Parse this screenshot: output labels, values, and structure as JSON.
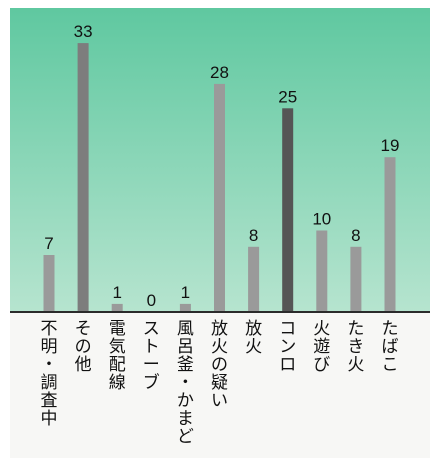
{
  "colors": {
    "panel_top": "#5fc8a0",
    "panel_bottom": "#b6e4cf",
    "bar_gray": "#9a9a9a",
    "bar_dark": "#555555",
    "baseline": "#2b2b2b"
  },
  "chart_data": {
    "type": "bar",
    "title": "",
    "xlabel": "",
    "ylabel": "",
    "ylim": [
      0,
      34
    ],
    "grid": false,
    "categories": [
      "不明・調査中",
      "その他",
      "電気配線",
      "ストーブ",
      "風呂釜・かまど",
      "放火の疑い",
      "放火",
      "コンロ",
      "火遊び",
      "たき火",
      "たばこ"
    ],
    "values": [
      7,
      33,
      1,
      0,
      1,
      28,
      8,
      25,
      10,
      8,
      19
    ],
    "value_labels": [
      "7",
      "33",
      "1",
      "0",
      "1",
      "28",
      "8",
      "25",
      "10",
      "8",
      "19"
    ],
    "highlight_colors": [
      "#9a9a9a",
      "#7d7d7d",
      "#9a9a9a",
      "#9a9a9a",
      "#9a9a9a",
      "#9a9a9a",
      "#9a9a9a",
      "#555555",
      "#9a9a9a",
      "#9a9a9a",
      "#9a9a9a"
    ]
  }
}
